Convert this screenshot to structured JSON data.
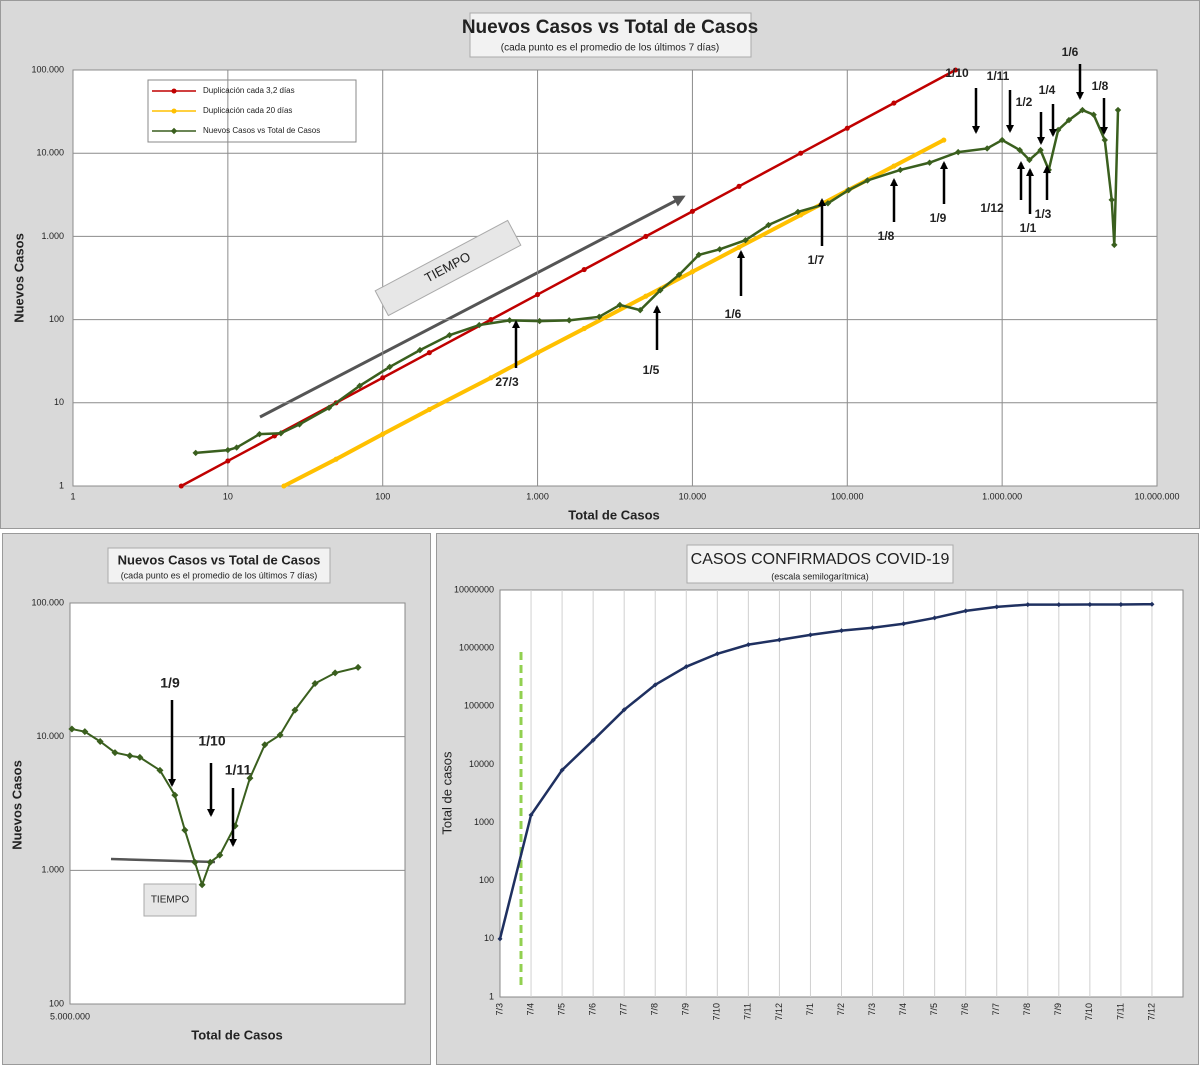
{
  "chart_data": [
    {
      "type": "line",
      "title": "Nuevos Casos vs Total de Casos",
      "subtitle": "(cada punto  es el promedio  de los últimos  7 días)",
      "x_label": "Total de Casos",
      "y_label": "Nuevos Casos",
      "xscale": "log",
      "yscale": "log",
      "grid": "both",
      "legend": "top-left",
      "xlim": [
        1,
        10000000
      ],
      "ylim": [
        1,
        100000
      ],
      "xticks": [
        1,
        10,
        100,
        {
          "value": 1000,
          "label": "1.000"
        },
        {
          "value": 10000,
          "label": "10.000"
        },
        {
          "value": 100000,
          "label": "100.000"
        },
        {
          "value": 1000000,
          "label": "1.000.000"
        },
        {
          "value": 10000000,
          "label": "10.000.000"
        }
      ],
      "yticks": [
        1,
        10,
        100,
        {
          "value": 1000,
          "label": "1.000"
        },
        {
          "value": 10000,
          "label": "10.000"
        },
        {
          "value": 100000,
          "label": "100.000"
        }
      ],
      "series": [
        {
          "name": "Duplicación cada 3,2 días",
          "color": "#c00000",
          "marker": "circle",
          "x": [
            5,
            10,
            20,
            50,
            100,
            200,
            500,
            1000,
            2000,
            5000,
            10000,
            20000,
            50000,
            100000,
            200000,
            500000
          ],
          "values": [
            1,
            2,
            4,
            10,
            20,
            40,
            100,
            200,
            400,
            1000,
            2000,
            4000,
            10000,
            20000,
            40000,
            100000
          ]
        },
        {
          "name": "Duplicación cada 20 días",
          "color": "#ffc000",
          "marker": "circle",
          "x": [
            23,
            50,
            100,
            200,
            500,
            1000,
            2000,
            5000,
            10000,
            20000,
            50000,
            100000,
            200000,
            420000
          ],
          "values": [
            1,
            2.1,
            4.2,
            8.3,
            20,
            40,
            78,
            191,
            376,
            740,
            1810,
            3560,
            7000,
            14400
          ]
        },
        {
          "name": "Nuevos Casos vs Total de Casos",
          "color": "#3a5f1e",
          "marker": "diamond",
          "x": [
            6.2,
            10,
            11.4,
            16,
            22,
            29,
            45,
            71,
            111,
            174,
            270,
            420,
            660,
            1030,
            1600,
            2500,
            3400,
            4600,
            6200,
            8200,
            11000,
            15000,
            22000,
            31000,
            48000,
            75000,
            102000,
            135000,
            220000,
            340000,
            520000,
            800000,
            1000000,
            1300000,
            1500000,
            1770000,
            2000000,
            2300000,
            2700000,
            3300000,
            3900000,
            4600000,
            5100000,
            5300000,
            5600000
          ],
          "values": [
            2.5,
            2.7,
            2.9,
            4.2,
            4.3,
            5.5,
            8.7,
            16,
            27,
            43,
            65,
            86,
            98,
            96,
            98,
            108,
            150,
            130,
            225,
            345,
            600,
            700,
            900,
            1370,
            1970,
            2500,
            3600,
            4700,
            6300,
            7700,
            10300,
            11400,
            14400,
            10900,
            8300,
            10900,
            6300,
            19000,
            25000,
            33000,
            29000,
            14400,
            2750,
            790,
            33000
          ]
        }
      ],
      "annotations": [
        "TIEMPO",
        "27/3",
        "1/5",
        "1/6",
        "1/7",
        "1/8",
        "1/9",
        "1/10",
        "1/11",
        "1/12",
        "1/1",
        "1/2",
        "1/3",
        "1/4",
        "1/6",
        "1/8"
      ]
    },
    {
      "type": "line",
      "title": "Nuevos Casos vs Total de Casos",
      "subtitle": "(cada punto es el promedio de los últimos 7 días)",
      "x_label": "Total de Casos",
      "y_label": "Nuevos Casos",
      "xscale": "linear",
      "yscale": "log",
      "grid": "y",
      "color": "#3a5f1e",
      "marker": "diamond",
      "xlim": [
        5000000,
        5700000
      ],
      "ylim": [
        100,
        100000
      ],
      "xticks": [
        {
          "value": 5000000,
          "label": "5.000.000"
        }
      ],
      "yticks": [
        100,
        {
          "value": 1000,
          "label": "1.000"
        },
        {
          "value": 10000,
          "label": "10.000"
        },
        {
          "value": 100000,
          "label": "100.000"
        }
      ],
      "x": [
        5004000,
        5031000,
        5063000,
        5094000,
        5125000,
        5146000,
        5188000,
        5219000,
        5240000,
        5261000,
        5276000,
        5293000,
        5313000,
        5345000,
        5376000,
        5407000,
        5439000,
        5470000,
        5512000,
        5554000,
        5602000
      ],
      "values": [
        11400,
        10900,
        9200,
        7600,
        7200,
        7000,
        5600,
        3650,
        2000,
        1150,
        780,
        1150,
        1300,
        2150,
        4900,
        8700,
        10300,
        15800,
        25000,
        30000,
        33000
      ],
      "annotations": [
        "1/9",
        "1/10",
        "1/11",
        "TIEMPO"
      ]
    },
    {
      "type": "line",
      "title": "CASOS CONFIRMADOS COVID-19",
      "subtitle": "(escala semilogarítmica)",
      "y_label": "Total de casos",
      "yscale": "log",
      "grid": "x",
      "color": "#1f3060",
      "marker": "diamond",
      "ylim": [
        1,
        10000000
      ],
      "yticks": [
        1,
        10,
        100,
        1000,
        10000,
        100000,
        1000000,
        10000000
      ],
      "categories": [
        "7/3",
        "7/4",
        "7/5",
        "7/6",
        "7/7",
        "7/8",
        "7/9",
        "7/10",
        "7/11",
        "7/12",
        "7/1",
        "7/2",
        "7/3",
        "7/4",
        "7/5",
        "7/6",
        "7/7",
        "7/8",
        "7/9",
        "7/10",
        "7/11",
        "7/12"
      ],
      "values": [
        10,
        1350,
        8000,
        26000,
        87000,
        234000,
        480000,
        800000,
        1150000,
        1390000,
        1690000,
        2000000,
        2240000,
        2630000,
        3310000,
        4370000,
        5130000,
        5600000,
        5600000,
        5620000,
        5640000,
        5700000
      ]
    }
  ]
}
